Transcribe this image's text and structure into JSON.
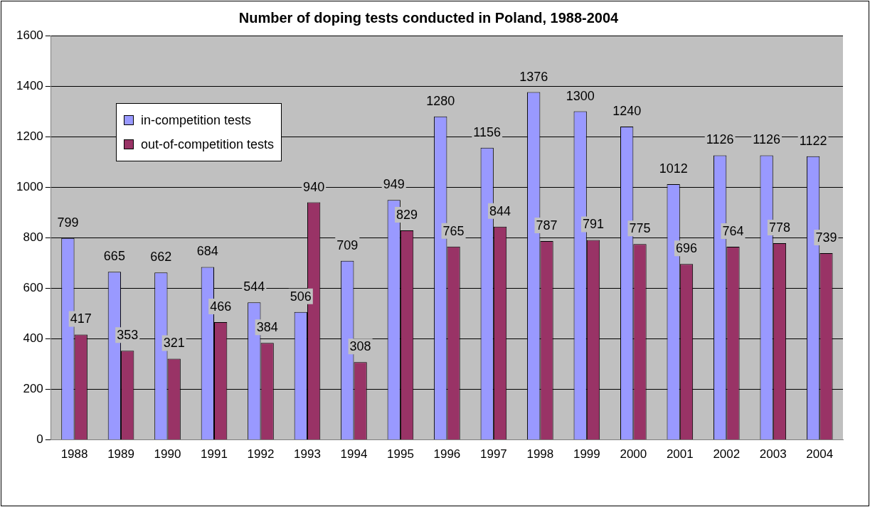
{
  "chart_data": {
    "type": "bar",
    "title": "Number of doping tests conducted in Poland, 1988-2004",
    "categories": [
      "1988",
      "1989",
      "1990",
      "1991",
      "1992",
      "1993",
      "1994",
      "1995",
      "1996",
      "1997",
      "1998",
      "1999",
      "2000",
      "2001",
      "2002",
      "2003",
      "2004"
    ],
    "series": [
      {
        "name": "in-competition tests",
        "color": "#9999ff",
        "values": [
          799,
          665,
          662,
          684,
          544,
          506,
          709,
          949,
          1280,
          1156,
          1376,
          1300,
          1240,
          1012,
          1126,
          1126,
          1122
        ]
      },
      {
        "name": "out-of-competition tests",
        "color": "#993366",
        "values": [
          417,
          353,
          321,
          466,
          384,
          940,
          308,
          829,
          765,
          844,
          787,
          791,
          775,
          696,
          764,
          778,
          739
        ]
      }
    ],
    "ylim": [
      0,
      1600
    ],
    "yticks": [
      0,
      200,
      400,
      600,
      800,
      1000,
      1200,
      1400,
      1600
    ],
    "grid": "y",
    "legend": "top left",
    "data_labels": true
  }
}
